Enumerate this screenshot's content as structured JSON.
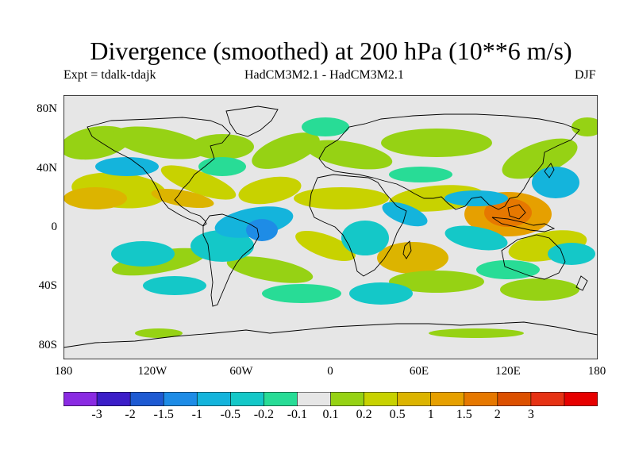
{
  "title": "Divergence (smoothed) at 200 hPa (10**6 m/s)",
  "experiment": "Expt = tdalk-tdajk",
  "model_label": "HadCM3M2.1 - HadCM3M2.1",
  "season": "DJF",
  "map": {
    "lat_ticks": [
      "80N",
      "40N",
      "0",
      "40S",
      "80S"
    ],
    "lon_ticks": [
      "180",
      "120W",
      "60W",
      "0",
      "60E",
      "120E",
      "180"
    ],
    "background": "#e6e6e6",
    "coastline_color": "#000000"
  },
  "colorbar": {
    "colors": [
      "#8a2be2",
      "#3c1ec8",
      "#1e5ad2",
      "#1e8ce6",
      "#14b4dc",
      "#14c8c8",
      "#28dc96",
      "#e6e6e6",
      "#96d214",
      "#c8d200",
      "#dcb400",
      "#e6a000",
      "#e67800",
      "#dc5000",
      "#e63214",
      "#e60000"
    ],
    "labels": [
      "-3",
      "-2",
      "-1.5",
      "-1",
      "-0.5",
      "-0.2",
      "-0.1",
      "0.1",
      "0.2",
      "0.5",
      "1",
      "1.5",
      "2",
      "3"
    ]
  },
  "field_colors": {
    "pos_weak": "#96d214",
    "pos_mid": "#c8d200",
    "pos_strong": "#dcb400",
    "pos_very": "#e6a000",
    "pos_max": "#e67800",
    "neg_weak": "#28dc96",
    "neg_mid": "#14c8c8",
    "neg_strong": "#14b4dc",
    "neg_very": "#1e8ce6"
  }
}
